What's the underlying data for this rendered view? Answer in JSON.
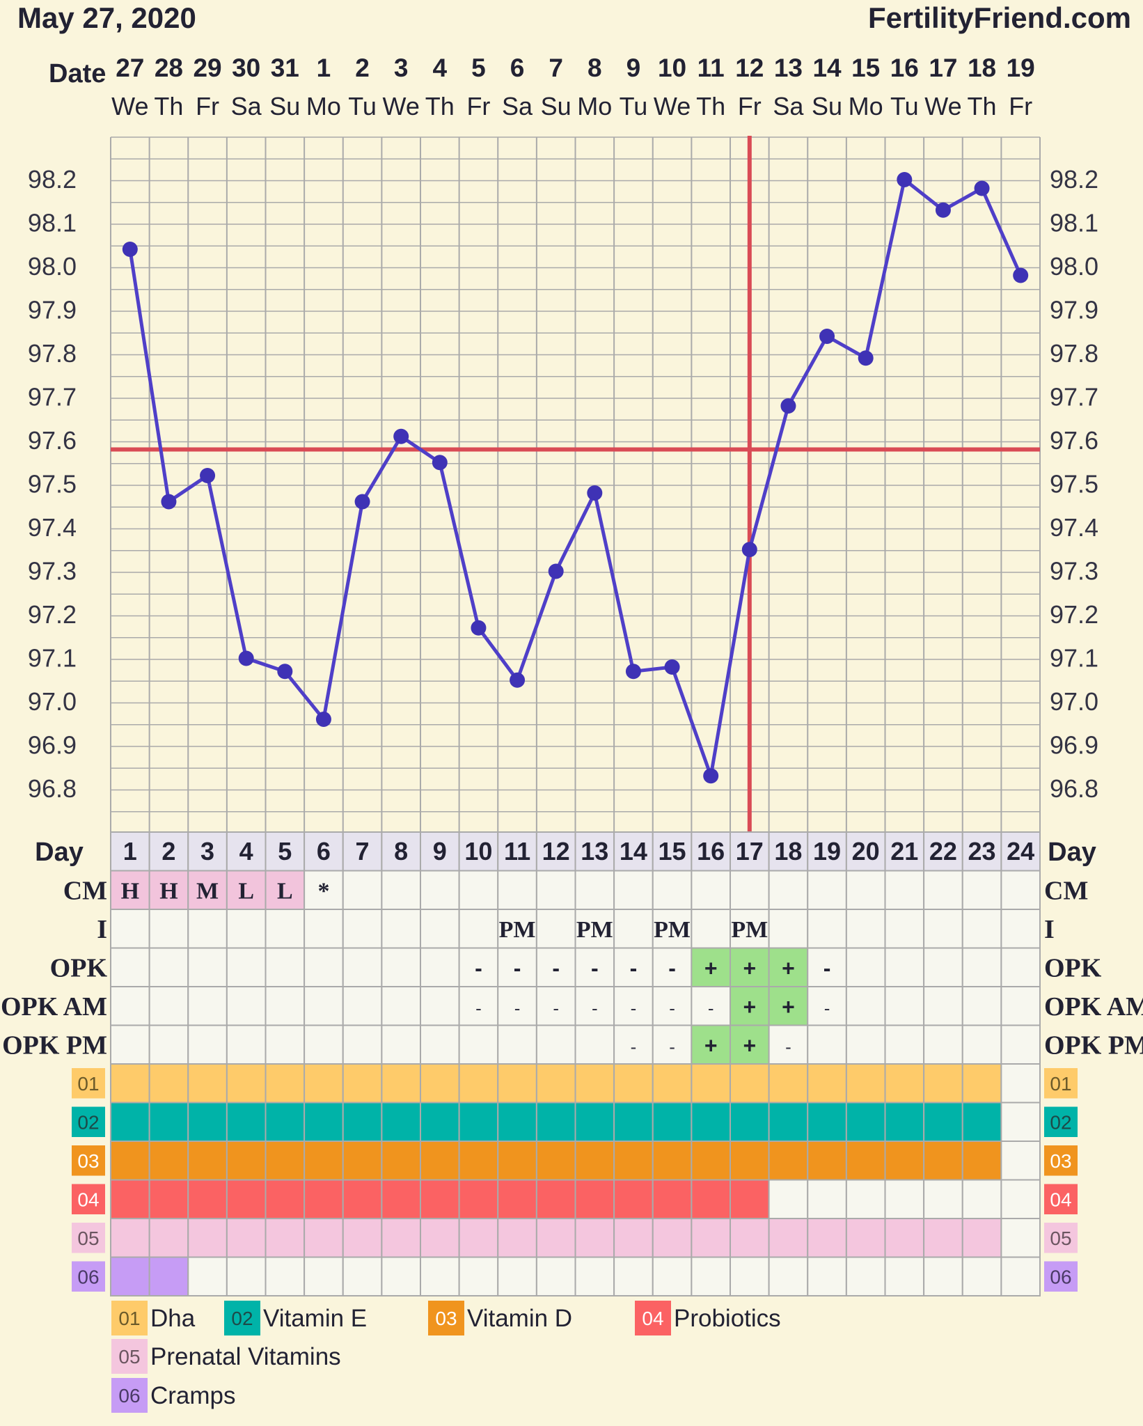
{
  "header": {
    "date": "May 27, 2020",
    "site": "FertilityFriend.com"
  },
  "chart_data": {
    "type": "line",
    "ylim": [
      96.7,
      98.3
    ],
    "yticks": [
      "98.2",
      "98.1",
      "98.0",
      "97.9",
      "97.8",
      "97.7",
      "97.6",
      "97.5",
      "97.4",
      "97.3",
      "97.2",
      "97.1",
      "97.0",
      "96.9",
      "96.8"
    ],
    "date_label": "Date",
    "dates": [
      "27",
      "28",
      "29",
      "30",
      "31",
      "1",
      "2",
      "3",
      "4",
      "5",
      "6",
      "7",
      "8",
      "9",
      "10",
      "11",
      "12",
      "13",
      "14",
      "15",
      "16",
      "17",
      "18",
      "19"
    ],
    "weekdays": [
      "We",
      "Th",
      "Fr",
      "Sa",
      "Su",
      "Mo",
      "Tu",
      "We",
      "Th",
      "Fr",
      "Sa",
      "Su",
      "Mo",
      "Tu",
      "We",
      "Th",
      "Fr",
      "Sa",
      "Su",
      "Mo",
      "Tu",
      "We",
      "Th",
      "Fr"
    ],
    "series": [
      {
        "values": [
          98.04,
          97.46,
          97.52,
          97.1,
          97.07,
          96.96,
          97.46,
          97.61,
          97.55,
          97.17,
          97.05,
          97.3,
          97.48,
          97.07,
          97.08,
          96.83,
          97.35,
          97.68,
          97.84,
          97.79,
          98.2,
          98.13,
          98.18,
          97.98
        ]
      }
    ],
    "coverline": 97.58,
    "ovulation_day": 17,
    "colors": {
      "line": "#4f3fc8",
      "marker": "#3f32b5",
      "coverline": "#d94b55",
      "grid": "#aaaaaa"
    }
  },
  "table": {
    "day_label": "Day",
    "days": [
      "1",
      "2",
      "3",
      "4",
      "5",
      "6",
      "7",
      "8",
      "9",
      "10",
      "11",
      "12",
      "13",
      "14",
      "15",
      "16",
      "17",
      "18",
      "19",
      "20",
      "21",
      "22",
      "23",
      "24"
    ],
    "cm_label": "CM",
    "cm": [
      "H",
      "H",
      "M",
      "L",
      "L",
      "*",
      "",
      "",
      "",
      "",
      "",
      "",
      "",
      "",
      "",
      "",
      "",
      "",
      "",
      "",
      "",
      "",
      "",
      ""
    ],
    "i_label": "I",
    "intercourse": [
      "",
      "",
      "",
      "",
      "",
      "",
      "",
      "",
      "",
      "",
      "PM",
      "",
      "PM",
      "",
      "PM",
      "",
      "PM",
      "",
      "",
      "",
      "",
      "",
      "",
      ""
    ],
    "opk_label": "OPK",
    "opk": [
      "",
      "",
      "",
      "",
      "",
      "",
      "",
      "",
      "",
      "-",
      "-",
      "-",
      "-",
      "-",
      "-",
      "+",
      "+",
      "+",
      "-",
      "",
      "",
      "",
      "",
      ""
    ],
    "opk_am_label": "OPK AM",
    "opk_am": [
      "",
      "",
      "",
      "",
      "",
      "",
      "",
      "",
      "",
      "-",
      "-",
      "-",
      "-",
      "-",
      "-",
      "-",
      "+",
      "+",
      "-",
      "",
      "",
      "",
      "",
      ""
    ],
    "opk_pm_label": "OPK PM",
    "opk_pm": [
      "",
      "",
      "",
      "",
      "",
      "",
      "",
      "",
      "",
      "",
      "",
      "",
      "",
      "-",
      "-",
      "+",
      "+",
      "-",
      "",
      "",
      "",
      "",
      "",
      ""
    ],
    "colors": {
      "cm_fill": "#f2c4dc",
      "opk_positive": "#9ee08b",
      "cell": "#f7f7ef",
      "header": "#e6e3ee"
    }
  },
  "supplements": [
    {
      "code": "01",
      "name": "Dha",
      "color": "#fecb6a",
      "text_color": "#6b5a2a",
      "days": 23
    },
    {
      "code": "02",
      "name": "Vitamin E",
      "color": "#00b3a8",
      "text_color": "#1d4a48",
      "days": 23
    },
    {
      "code": "03",
      "name": "Vitamin D",
      "color": "#f0941e",
      "text_color": "#ffffff",
      "days": 23
    },
    {
      "code": "04",
      "name": "Probiotics",
      "color": "#fb6263",
      "text_color": "#ffffff",
      "days": 17
    },
    {
      "code": "05",
      "name": "Prenatal Vitamins",
      "color": "#f4c6de",
      "text_color": "#6b5560",
      "days": 23
    },
    {
      "code": "06",
      "name": "Cramps",
      "color": "#c69cf5",
      "text_color": "#4a3a66",
      "days": 2
    }
  ]
}
